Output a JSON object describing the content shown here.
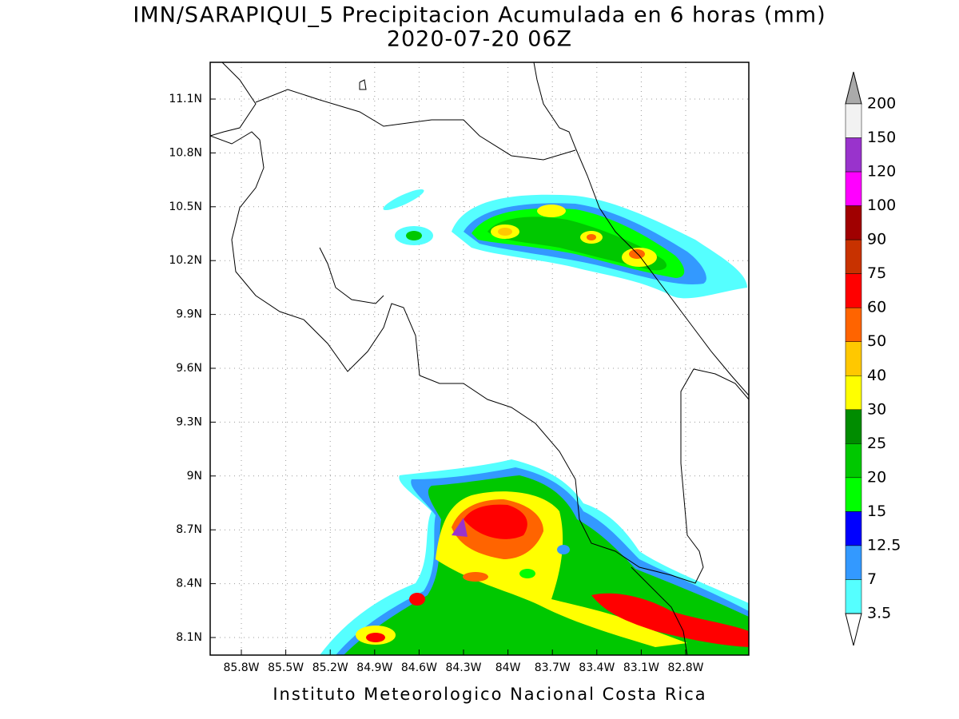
{
  "header": {
    "title": "IMN/SARAPIQUI_5 Precipitacion Acumulada en 6 horas (mm)",
    "subtitle": "2020-07-20 06Z"
  },
  "map": {
    "lat_labels": [
      "11.1N",
      "10.8N",
      "10.5N",
      "10.2N",
      "9.9N",
      "9.6N",
      "9.3N",
      "9N",
      "8.7N",
      "8.4N",
      "8.1N"
    ],
    "lon_labels": [
      "85.8W",
      "85.5W",
      "85.2W",
      "84.9W",
      "84.6W",
      "84.3W",
      "84W",
      "83.7W",
      "83.4W",
      "83.1W",
      "82.8W"
    ]
  },
  "colorbar": {
    "levels": [
      200,
      150,
      120,
      100,
      90,
      75,
      60,
      50,
      40,
      30,
      25,
      20,
      15,
      12.5,
      7,
      3.5
    ],
    "colors": [
      "#f2f2f2",
      "#9933cc",
      "#ff00ff",
      "#a00000",
      "#c83200",
      "#ff0000",
      "#ff6400",
      "#ffc800",
      "#ffff00",
      "#008c00",
      "#00c800",
      "#00ff00",
      "#0000ff",
      "#3399ff",
      "#55ffff"
    ],
    "over_color": "#aaaaaa",
    "under_color": "#ffffff"
  },
  "footer": {
    "text": "Instituto Meteorologico Nacional Costa Rica"
  }
}
